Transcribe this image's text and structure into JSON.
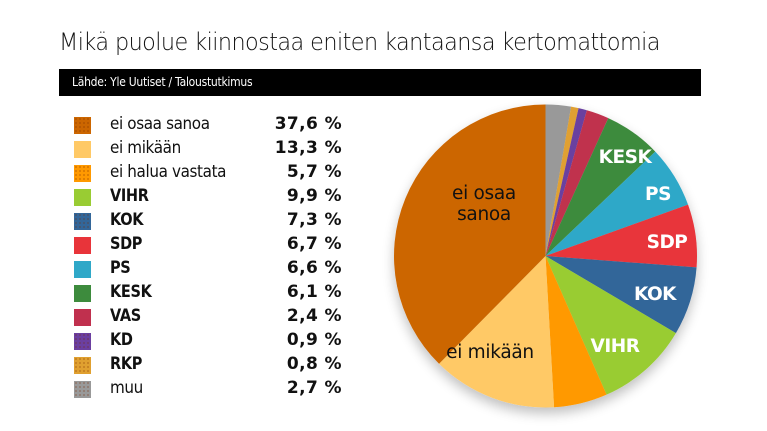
{
  "title": "Mikä puolue kiinnostaa eniten kantaansa kertomattomia",
  "source": "Lähde: Yle Uutiset / Taloustutkimus",
  "legend": [
    {
      "label": "ei osaa sanoa",
      "value": "37,6 %",
      "color": "#CC6600",
      "bold": false,
      "dotted": true
    },
    {
      "label": "ei mikään",
      "value": "13,3 %",
      "color": "#FFC966",
      "bold": false,
      "dotted": false
    },
    {
      "label": "ei halua vastata",
      "value": "5,7 %",
      "color": "#FF9900",
      "bold": false,
      "dotted": true
    },
    {
      "label": "VIHR",
      "value": "9,9 %",
      "color": "#99CC33",
      "bold": true,
      "dotted": false
    },
    {
      "label": "KOK",
      "value": "7,3 %",
      "color": "#336699",
      "bold": true,
      "dotted": true
    },
    {
      "label": "SDP",
      "value": "6,7 %",
      "color": "#E8343A",
      "bold": true,
      "dotted": false
    },
    {
      "label": "PS",
      "value": "6,6 %",
      "color": "#2FA8C8",
      "bold": true,
      "dotted": false
    },
    {
      "label": "KESK",
      "value": "6,1 %",
      "color": "#3D8B3D",
      "bold": true,
      "dotted": false
    },
    {
      "label": "VAS",
      "value": "2,4 %",
      "color": "#C0304E",
      "bold": true,
      "dotted": false
    },
    {
      "label": "KD",
      "value": "0,9 %",
      "color": "#6B3FA0",
      "bold": true,
      "dotted": true
    },
    {
      "label": "RKP",
      "value": "0,8 %",
      "color": "#E0A030",
      "bold": true,
      "dotted": true
    },
    {
      "label": "muu",
      "value": "2,7 %",
      "color": "#999999",
      "bold": false,
      "dotted": true
    }
  ],
  "chart_data": {
    "type": "pie",
    "title": "Mikä puolue kiinnostaa eniten kantaansa kertomattomia",
    "subtitle": "Lähde: Yle Uutiset / Taloustutkimus",
    "legend_position": "left",
    "start_angle": "12 o'clock",
    "direction": "clockwise",
    "unit": "%",
    "slices_in_draw_order": [
      {
        "name": "muu",
        "value": 2.7,
        "color": "#999999",
        "label": ""
      },
      {
        "name": "RKP",
        "value": 0.8,
        "color": "#E0A030",
        "label": ""
      },
      {
        "name": "KD",
        "value": 0.9,
        "color": "#6B3FA0",
        "label": ""
      },
      {
        "name": "VAS",
        "value": 2.4,
        "color": "#C0304E",
        "label": ""
      },
      {
        "name": "KESK",
        "value": 6.1,
        "color": "#3D8B3D",
        "label": "KESK",
        "label_color": "#ffffff",
        "label_bold": true
      },
      {
        "name": "PS",
        "value": 6.6,
        "color": "#2FA8C8",
        "label": "PS",
        "label_color": "#ffffff",
        "label_bold": true
      },
      {
        "name": "SDP",
        "value": 6.7,
        "color": "#E8343A",
        "label": "SDP",
        "label_color": "#ffffff",
        "label_bold": true
      },
      {
        "name": "KOK",
        "value": 7.3,
        "color": "#336699",
        "label": "KOK",
        "label_color": "#ffffff",
        "label_bold": true
      },
      {
        "name": "VIHR",
        "value": 9.9,
        "color": "#99CC33",
        "label": "VIHR",
        "label_color": "#ffffff",
        "label_bold": true
      },
      {
        "name": "ei halua vastata",
        "value": 5.7,
        "color": "#FF9900",
        "label": ""
      },
      {
        "name": "ei mikään",
        "value": 13.3,
        "color": "#FFC966",
        "label": "ei mikään",
        "label_color": "#111111",
        "label_bold": false
      },
      {
        "name": "ei osaa sanoa",
        "value": 37.6,
        "color": "#CC6600",
        "label": "ei osaa|sanoa",
        "label_color": "#111111",
        "label_bold": false
      }
    ]
  },
  "pie_label_positions": {
    "KESK": [
      245,
      67
    ],
    "PS": [
      278,
      104
    ],
    "SDP": [
      287,
      152
    ],
    "KOK": [
      275,
      204
    ],
    "VIHR": [
      235,
      256
    ],
    "ei mikään": [
      110,
      262
    ],
    "ei osaa sanoa": [
      104,
      103
    ]
  }
}
